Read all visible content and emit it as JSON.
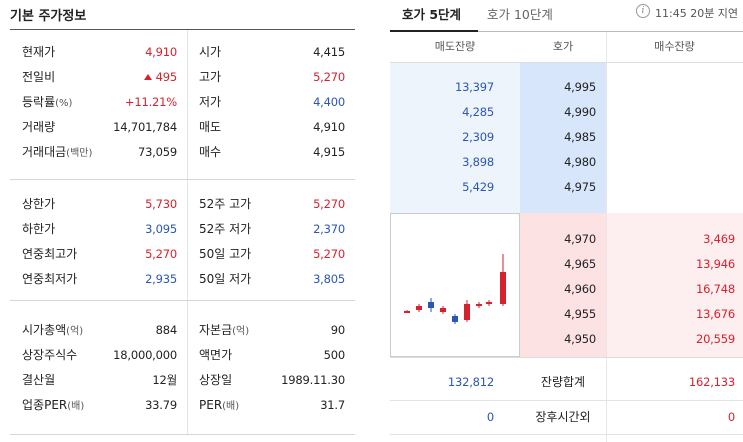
{
  "left_panel": {
    "title": "기본 주가정보",
    "section1": [
      {
        "label": "현재가",
        "label_unit": "",
        "value": "4,910",
        "value_color": "red",
        "label2": "시가",
        "label2_unit": "",
        "value2": "4,415",
        "value2_color": "dark"
      },
      {
        "label": "전일비",
        "label_unit": "",
        "value": "495",
        "value_color": "red",
        "value_prefix_icon": "up-triangle-icon",
        "label2": "고가",
        "label2_unit": "",
        "value2": "5,270",
        "value2_color": "red"
      },
      {
        "label": "등락률",
        "label_unit": "(%)",
        "value": "+11.21%",
        "value_color": "red",
        "label2": "저가",
        "label2_unit": "",
        "value2": "4,400",
        "value2_color": "blue"
      },
      {
        "label": "거래량",
        "label_unit": "",
        "value": "14,701,784",
        "value_color": "dark",
        "label2": "매도",
        "label2_unit": "",
        "value2": "4,910",
        "value2_color": "dark"
      },
      {
        "label": "거래대금",
        "label_unit": "(백만)",
        "value": "73,059",
        "value_color": "dark",
        "label2": "매수",
        "label2_unit": "",
        "value2": "4,915",
        "value2_color": "dark"
      }
    ],
    "section2": [
      {
        "label": "상한가",
        "label_unit": "",
        "value": "5,730",
        "value_color": "red",
        "label2": "52주 고가",
        "label2_unit": "",
        "value2": "5,270",
        "value2_color": "red"
      },
      {
        "label": "하한가",
        "label_unit": "",
        "value": "3,095",
        "value_color": "blue",
        "label2": "52주 저가",
        "label2_unit": "",
        "value2": "2,370",
        "value2_color": "blue"
      },
      {
        "label": "연중최고가",
        "label_unit": "",
        "value": "5,270",
        "value_color": "red",
        "label2": "50일 고가",
        "label2_unit": "",
        "value2": "5,270",
        "value2_color": "red"
      },
      {
        "label": "연중최저가",
        "label_unit": "",
        "value": "2,935",
        "value_color": "blue",
        "label2": "50일 저가",
        "label2_unit": "",
        "value2": "3,805",
        "value2_color": "blue"
      }
    ],
    "section3": [
      {
        "label": "시가총액",
        "label_unit": "(억)",
        "value": "884",
        "value_color": "dark",
        "label2": "자본금",
        "label2_unit": "(억)",
        "value2": "90",
        "value2_color": "dark"
      },
      {
        "label": "상장주식수",
        "label_unit": "",
        "value": "18,000,000",
        "value_color": "dark",
        "label2": "액면가",
        "label2_unit": "",
        "value2": "500",
        "value2_color": "dark"
      },
      {
        "label": "결산월",
        "label_unit": "",
        "value": "12월",
        "value_color": "dark",
        "label2": "상장일",
        "label2_unit": "",
        "value2": "1989.11.30",
        "value2_color": "dark"
      },
      {
        "label": "업종PER",
        "label_unit": "(배)",
        "value": "33.79",
        "value_color": "dark",
        "label2": "PER",
        "label2_unit": "(배)",
        "value2": "31.7",
        "value2_color": "dark"
      }
    ]
  },
  "orderbook": {
    "tabs": [
      {
        "label": "호가 5단계",
        "active": true
      },
      {
        "label": "호가 10단계",
        "active": false
      }
    ],
    "info_icon_glyph": "i",
    "delay_text": "11:45 20분 지연",
    "headers": {
      "ask_volume": "매도잔량",
      "price": "호가",
      "bid_volume": "매수잔량"
    },
    "asks": [
      {
        "volume": "13,397",
        "price": "4,995"
      },
      {
        "volume": "4,285",
        "price": "4,990"
      },
      {
        "volume": "2,309",
        "price": "4,985"
      },
      {
        "volume": "3,898",
        "price": "4,980"
      },
      {
        "volume": "5,429",
        "price": "4,975"
      }
    ],
    "bids": [
      {
        "price": "4,970",
        "volume": "3,469"
      },
      {
        "price": "4,965",
        "volume": "13,946"
      },
      {
        "price": "4,960",
        "volume": "16,748"
      },
      {
        "price": "4,955",
        "volume": "13,676"
      },
      {
        "price": "4,950",
        "volume": "20,559"
      }
    ],
    "total": {
      "ask": "132,812",
      "label": "잔량합계",
      "bid": "162,133"
    },
    "after_hours": {
      "ask": "0",
      "label": "장후시간외",
      "bid": "0"
    },
    "colors": {
      "up": "#d6222e",
      "down": "#2a56b5",
      "ask_bg": "#d7e6fa",
      "bid_bg": "#fde2e4"
    }
  }
}
